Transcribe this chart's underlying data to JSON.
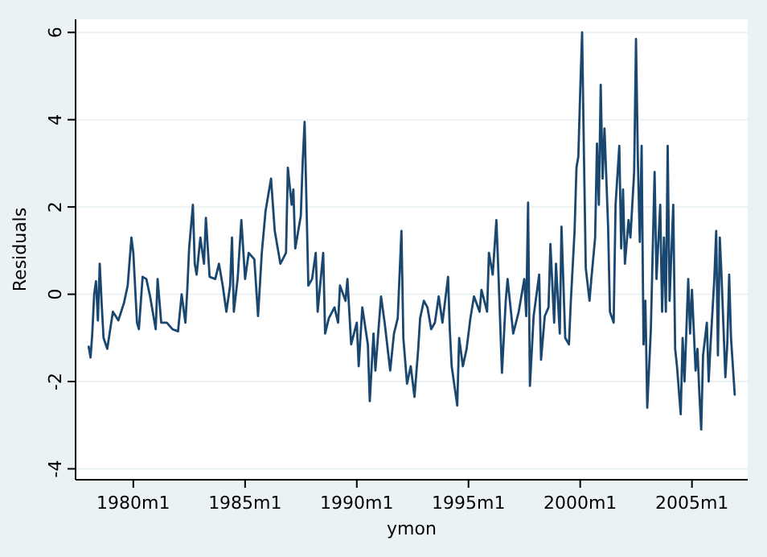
{
  "chart_data": {
    "type": "line",
    "xlabel": "ymon",
    "ylabel": "Residuals",
    "xlim": [
      "1977-06",
      "2007-07"
    ],
    "ylim": [
      -4.25,
      6.3
    ],
    "xticks": [
      {
        "value": "1980-01",
        "label": "1980m1"
      },
      {
        "value": "1985-01",
        "label": "1985m1"
      },
      {
        "value": "1990-01",
        "label": "1990m1"
      },
      {
        "value": "1995-01",
        "label": "1995m1"
      },
      {
        "value": "2000-01",
        "label": "2000m1"
      },
      {
        "value": "2005-01",
        "label": "2005m1"
      }
    ],
    "yticks": [
      -4,
      -2,
      0,
      2,
      4,
      6
    ],
    "grid": "y",
    "marker": "none",
    "line_style": "solid",
    "x": [
      "1978-01",
      "1978-02",
      "1978-03",
      "1978-04",
      "1978-05",
      "1978-06",
      "1978-07",
      "1978-08",
      "1978-09",
      "1978-11",
      "1979-02",
      "1979-05",
      "1979-08",
      "1979-10",
      "1979-12",
      "1980-01",
      "1980-03",
      "1980-04",
      "1980-06",
      "1980-08",
      "1980-10",
      "1981-01",
      "1981-02",
      "1981-04",
      "1981-07",
      "1981-10",
      "1982-01",
      "1982-03",
      "1982-05",
      "1982-06",
      "1982-07",
      "1982-09",
      "1982-10",
      "1982-11",
      "1983-01",
      "1983-03",
      "1983-04",
      "1983-06",
      "1983-09",
      "1983-11",
      "1984-01",
      "1984-03",
      "1984-05",
      "1984-06",
      "1984-07",
      "1984-09",
      "1984-11",
      "1985-01",
      "1985-03",
      "1985-06",
      "1985-08",
      "1985-10",
      "1985-12",
      "1986-03",
      "1986-05",
      "1986-08",
      "1986-11",
      "1986-12",
      "1987-02",
      "1987-03",
      "1987-04",
      "1987-07",
      "1987-08",
      "1987-09",
      "1987-11",
      "1988-01",
      "1988-03",
      "1988-04",
      "1988-07",
      "1988-08",
      "1988-10",
      "1989-01",
      "1989-03",
      "1989-04",
      "1989-07",
      "1989-08",
      "1989-10",
      "1990-01",
      "1990-02",
      "1990-04",
      "1990-07",
      "1990-08",
      "1990-10",
      "1990-11",
      "1991-02",
      "1991-04",
      "1991-07",
      "1991-09",
      "1991-11",
      "1992-01",
      "1992-02",
      "1992-04",
      "1992-06",
      "1992-08",
      "1992-10",
      "1992-11",
      "1993-01",
      "1993-03",
      "1993-05",
      "1993-07",
      "1993-09",
      "1993-11",
      "1994-02",
      "1994-03",
      "1994-04",
      "1994-07",
      "1994-08",
      "1994-10",
      "1994-12",
      "1995-02",
      "1995-04",
      "1995-07",
      "1995-08",
      "1995-11",
      "1995-12",
      "1996-02",
      "1996-04",
      "1996-05",
      "1996-07",
      "1996-09",
      "1996-10",
      "1997-01",
      "1997-04",
      "1997-07",
      "1997-08",
      "1997-09",
      "1997-10",
      "1997-12",
      "1998-03",
      "1998-04",
      "1998-06",
      "1998-08",
      "1998-09",
      "1998-11",
      "1998-12",
      "1999-02",
      "1999-03",
      "1999-05",
      "1999-07",
      "1999-08",
      "1999-10",
      "1999-11",
      "1999-12",
      "2000-01",
      "2000-02",
      "2000-03",
      "2000-04",
      "2000-06",
      "2000-07",
      "2000-09",
      "2000-10",
      "2000-11",
      "2000-12",
      "2001-01",
      "2001-02",
      "2001-04",
      "2001-05",
      "2001-07",
      "2001-08",
      "2001-10",
      "2001-11",
      "2001-12",
      "2002-01",
      "2002-03",
      "2002-04",
      "2002-06",
      "2002-07",
      "2002-08",
      "2002-09",
      "2002-10",
      "2002-11",
      "2002-12",
      "2003-01",
      "2003-03",
      "2003-04",
      "2003-05",
      "2003-06",
      "2003-08",
      "2003-09",
      "2003-10",
      "2003-11",
      "2003-12",
      "2004-01",
      "2004-03",
      "2004-04",
      "2004-05",
      "2004-07",
      "2004-08",
      "2004-09",
      "2004-11",
      "2004-12",
      "2005-01",
      "2005-03",
      "2005-04",
      "2005-05",
      "2005-06",
      "2005-07",
      "2005-09",
      "2005-10",
      "2005-11",
      "2006-01",
      "2006-02",
      "2006-03",
      "2006-04",
      "2006-05",
      "2006-07",
      "2006-08",
      "2006-09",
      "2006-10",
      "2006-12"
    ],
    "series": [
      {
        "color": "#1a476f",
        "values": [
          -1.2,
          -1.45,
          -0.9,
          0,
          0.3,
          -0.6,
          0.7,
          -0.2,
          -1,
          -1.25,
          -0.4,
          -0.6,
          -0.2,
          0.2,
          1.3,
          0.95,
          -0.65,
          -0.8,
          0.4,
          0.35,
          -0.05,
          -0.8,
          0.35,
          -0.65,
          -0.65,
          -0.8,
          -0.85,
          0,
          -0.65,
          0.1,
          1.05,
          2.05,
          0.7,
          0.45,
          1.3,
          0.7,
          1.75,
          0.4,
          0.35,
          0.7,
          0.2,
          -0.4,
          0.2,
          1.3,
          -0.4,
          0.35,
          1.7,
          0.35,
          0.95,
          0.8,
          -0.5,
          0.95,
          1.9,
          2.65,
          1.45,
          0.7,
          0.95,
          2.9,
          2.05,
          2.4,
          1.05,
          1.8,
          3.05,
          3.95,
          0.2,
          0.35,
          0.95,
          -0.4,
          0.95,
          -0.9,
          -0.55,
          -0.3,
          -0.65,
          0.2,
          -0.15,
          0.35,
          -1.15,
          -0.65,
          -1.65,
          -0.3,
          -1.15,
          -2.45,
          -0.9,
          -1.75,
          -0.05,
          -0.65,
          -1.75,
          -0.9,
          -0.55,
          1.45,
          -1,
          -2.05,
          -1.65,
          -2.35,
          -1.25,
          -0.55,
          -0.15,
          -0.3,
          -0.8,
          -0.65,
          -0.05,
          -0.65,
          0.4,
          -0.8,
          -1.65,
          -2.55,
          -1,
          -1.65,
          -1.25,
          -0.55,
          -0.05,
          -0.4,
          0.1,
          -0.4,
          0.95,
          0.45,
          1.7,
          0.6,
          -1.8,
          -0.15,
          0.35,
          -0.9,
          -0.4,
          0.35,
          -0.5,
          2.1,
          -2.1,
          -0.5,
          0.45,
          -1.5,
          -0.5,
          -0.3,
          1.15,
          -0.65,
          0.7,
          -0.9,
          1.55,
          -1,
          -1.15,
          -0.15,
          1.45,
          2.9,
          3.15,
          4.65,
          6,
          3.3,
          0.6,
          -0.15,
          0.35,
          1.3,
          3.45,
          2.05,
          4.8,
          2.65,
          3.8,
          1.55,
          -0.4,
          -0.65,
          2.05,
          3.4,
          1.05,
          2.4,
          0.7,
          1.7,
          1.3,
          2.8,
          5.85,
          3.05,
          1.2,
          3.4,
          -1.15,
          -0.15,
          -2.6,
          -0.8,
          1.05,
          2.8,
          0.35,
          2.05,
          -0.4,
          1.3,
          -0.4,
          3.4,
          -0.15,
          2.05,
          -1.25,
          -1.65,
          -2.75,
          -1,
          -2,
          0.35,
          -0.9,
          0.1,
          -1.75,
          -1.25,
          -2.25,
          -3.1,
          -1.4,
          -0.65,
          -2,
          -1.15,
          0.35,
          1.45,
          -1.4,
          1.3,
          0.35,
          -1.9,
          -1.15,
          0.45,
          -1,
          -2.3
        ]
      }
    ]
  }
}
